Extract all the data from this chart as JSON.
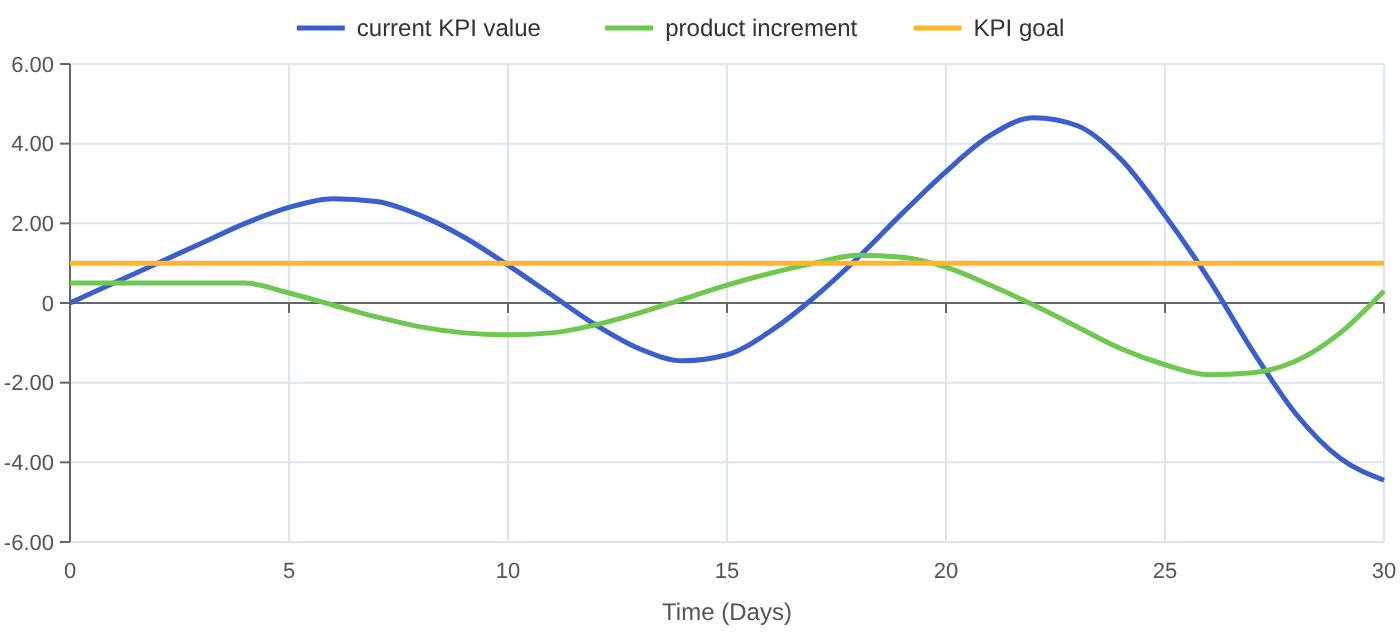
{
  "chart_data": {
    "type": "line",
    "xlabel": "Time (Days)",
    "x": [
      0,
      1,
      2,
      3,
      4,
      5,
      6,
      7,
      8,
      9,
      10,
      11,
      12,
      13,
      14,
      15,
      16,
      17,
      18,
      19,
      20,
      21,
      22,
      23,
      24,
      25,
      26,
      27,
      28,
      29,
      30
    ],
    "series": [
      {
        "name": "current KPI value",
        "color": "#3a5fcd",
        "values": [
          0,
          0.5,
          1,
          1.5,
          2,
          2.4,
          2.62,
          2.55,
          2.2,
          1.65,
          0.95,
          0.2,
          -0.55,
          -1.15,
          -1.45,
          -1.3,
          -0.7,
          0.15,
          1.15,
          2.25,
          3.3,
          4.2,
          4.65,
          4.45,
          3.6,
          2.2,
          0.6,
          -1.2,
          -2.8,
          -3.9,
          -4.45
        ]
      },
      {
        "name": "product increment",
        "color": "#6cc84f",
        "values": [
          0.5,
          0.5,
          0.5,
          0.5,
          0.5,
          0.25,
          -0.05,
          -0.35,
          -0.6,
          -0.75,
          -0.8,
          -0.75,
          -0.55,
          -0.25,
          0.1,
          0.45,
          0.75,
          1.0,
          1.2,
          1.15,
          0.9,
          0.45,
          -0.05,
          -0.6,
          -1.15,
          -1.55,
          -1.8,
          -1.75,
          -1.45,
          -0.75,
          0.3
        ]
      },
      {
        "name": "KPI goal",
        "color": "#fbb829",
        "values": [
          1,
          1,
          1,
          1,
          1,
          1,
          1,
          1,
          1,
          1,
          1,
          1,
          1,
          1,
          1,
          1,
          1,
          1,
          1,
          1,
          1,
          1,
          1,
          1,
          1,
          1,
          1,
          1,
          1,
          1,
          1
        ]
      }
    ],
    "xlim": [
      0,
      30
    ],
    "xticks": [
      0,
      5,
      10,
      15,
      20,
      25,
      30
    ],
    "ylim": [
      -6,
      6
    ],
    "yticks": [
      {
        "value": -6,
        "label": "-6.00"
      },
      {
        "value": -4,
        "label": "-4.00"
      },
      {
        "value": -2,
        "label": "-2.00"
      },
      0,
      {
        "value": 2,
        "label": "2.00"
      },
      {
        "value": 4,
        "label": "4.00"
      },
      {
        "value": 6,
        "label": "6.00"
      }
    ],
    "grid": true,
    "legend": "top",
    "marker": "none",
    "line_style": "solid"
  }
}
